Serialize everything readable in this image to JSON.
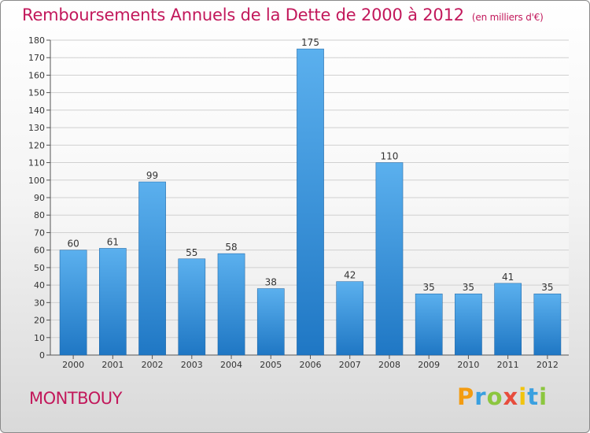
{
  "title": "Remboursements Annuels de la Dette de 2000 à 2012",
  "unit_note": "(en milliers d'€)",
  "location": "MONTBOUY",
  "brand": {
    "letters": [
      "P",
      "r",
      "o",
      "x",
      "i",
      "t",
      "i"
    ],
    "colors": [
      "#f39c12",
      "#3aa0e0",
      "#8cc63f",
      "#e74c3c",
      "#f1c40f",
      "#3aa0e0",
      "#8cc63f"
    ]
  },
  "colors": {
    "bar_top": "#5bb0ee",
    "bar_bottom": "#1f77c4",
    "title": "#c2185b",
    "grid": "#d0d0d0"
  },
  "chart_data": {
    "type": "bar",
    "categories": [
      "2000",
      "2001",
      "2002",
      "2003",
      "2004",
      "2005",
      "2006",
      "2007",
      "2008",
      "2009",
      "2010",
      "2011",
      "2012"
    ],
    "values": [
      60,
      61,
      99,
      55,
      58,
      38,
      175,
      42,
      110,
      35,
      35,
      41,
      35
    ],
    "data_labels": [
      "60",
      "61",
      "99",
      "55",
      "58",
      "38",
      "175",
      "42",
      "110",
      "35",
      "35",
      "41",
      "35"
    ],
    "yticks": [
      "0",
      "10",
      "20",
      "30",
      "40",
      "50",
      "60",
      "70",
      "80",
      "90",
      "100",
      "110",
      "120",
      "130",
      "140",
      "150",
      "160",
      "170",
      "180"
    ],
    "ylim": [
      0,
      180
    ],
    "grid": true
  }
}
